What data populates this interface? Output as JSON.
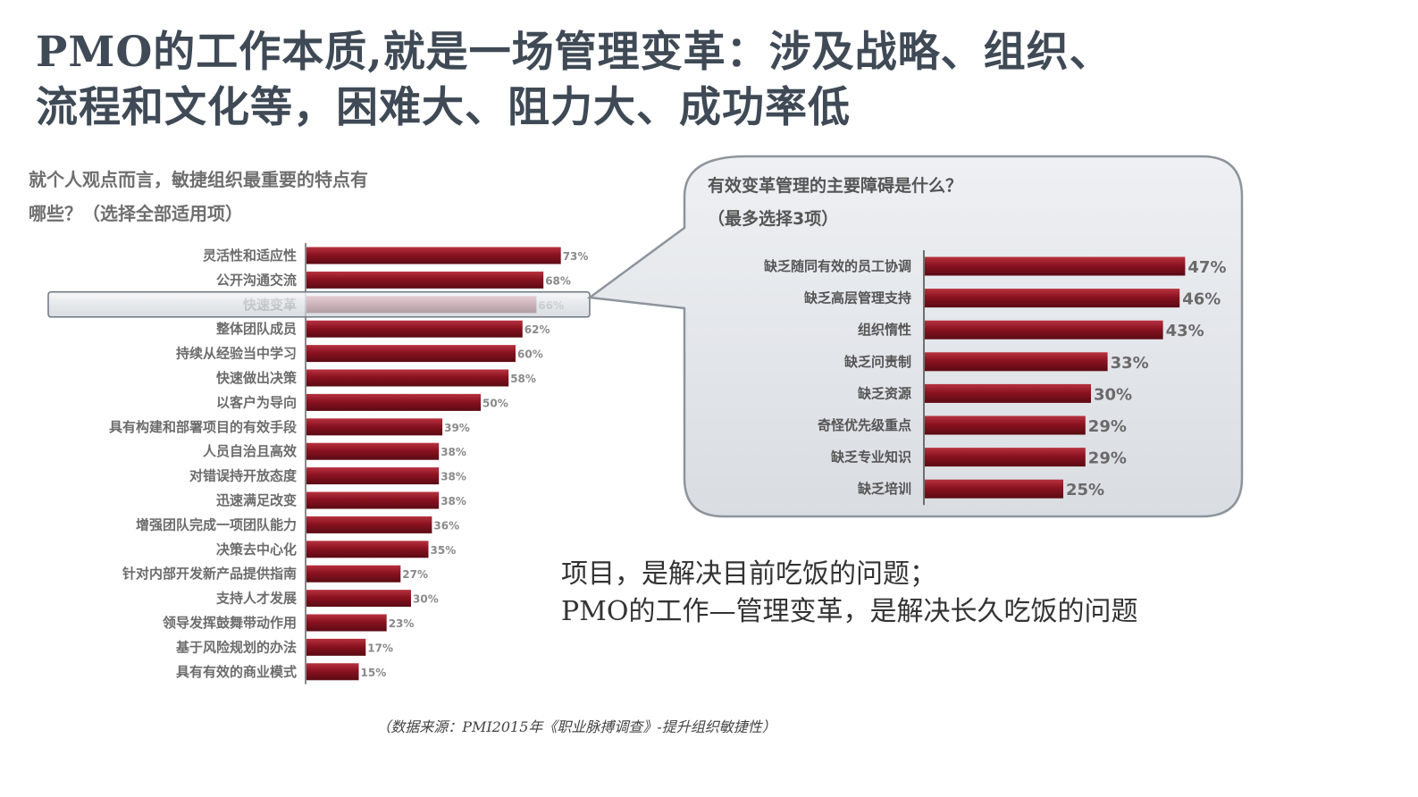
{
  "title": {
    "line1": "PMO的工作本质,就是一场管理变革：涉及战略、组织、",
    "line2": "流程和文化等，困难大、阻力大、成功率低"
  },
  "note": {
    "line1": "项目，是解决目前吃饭的问题；",
    "line2": "PMO的工作—管理变革，是解决长久吃饭的问题"
  },
  "source": "（数据来源：PMI2015年《职业脉搏调查》-提升组织敏捷性）",
  "colors": {
    "bar": "#8b1220",
    "bar_highlight": "#a33a44",
    "callout_fill": "#e4e7eb",
    "callout_stroke": "#8d949c",
    "title": "#3f4a56"
  },
  "chart_data": [
    {
      "type": "bar",
      "orientation": "horizontal",
      "title_line1": "就个人观点而言，敏捷组织最重要的特点有",
      "title_line2": "哪些？（选择全部适用项）",
      "highlighted_category": "快速变革",
      "categories": [
        "灵活性和适应性",
        "公开沟通交流",
        "快速变革",
        "整体团队成员",
        "持续从经验当中学习",
        "快速做出决策",
        "以客户为导向",
        "具有构建和部署项目的有效手段",
        "人员自治且高效",
        "对错误持开放态度",
        "迅速满足改变",
        "增强团队完成一项团队能力",
        "决策去中心化",
        "针对内部开发新产品提供指南",
        "支持人才发展",
        "领导发挥鼓舞带动作用",
        "基于风险规划的办法",
        "具有有效的商业模式"
      ],
      "values": [
        73,
        68,
        66,
        62,
        60,
        58,
        50,
        39,
        38,
        38,
        38,
        36,
        35,
        27,
        30,
        23,
        17,
        15
      ],
      "value_labels": [
        "73%",
        "68%",
        "66%",
        "62%",
        "60%",
        "58%",
        "50%",
        "39%",
        "38%",
        "38%",
        "38%",
        "36%",
        "35%",
        "27%",
        "30%",
        "23%",
        "17%",
        "15%"
      ],
      "xlim": [
        0,
        80
      ],
      "grid": false
    },
    {
      "type": "bar",
      "orientation": "horizontal",
      "title_line1": "有效变革管理的主要障碍是什么？",
      "title_line2": "（最多选择3项）",
      "categories": [
        "缺乏随同有效的员工协调",
        "缺乏高层管理支持",
        "组织惰性",
        "缺乏问责制",
        "缺乏资源",
        "奇怪优先级重点",
        "缺乏专业知识",
        "缺乏培训"
      ],
      "values": [
        47,
        46,
        43,
        33,
        30,
        29,
        29,
        25
      ],
      "value_labels": [
        "47%",
        "46%",
        "43%",
        "33%",
        "30%",
        "29%",
        "29%",
        "25%"
      ],
      "xlim": [
        0,
        50
      ],
      "grid": false
    }
  ]
}
